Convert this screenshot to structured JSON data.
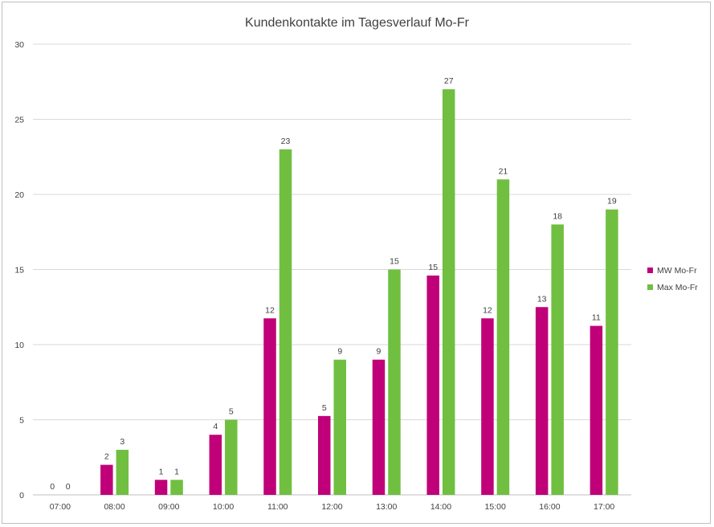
{
  "chart_data": {
    "type": "bar",
    "title": "Kundenkontakte im Tagesverlauf Mo-Fr",
    "categories": [
      "07:00",
      "08:00",
      "09:00",
      "10:00",
      "11:00",
      "12:00",
      "13:00",
      "14:00",
      "15:00",
      "16:00",
      "17:00"
    ],
    "series": [
      {
        "name": "MW Mo-Fr",
        "color": "#c00078",
        "values": [
          0,
          2,
          1,
          4,
          11.75,
          5.25,
          9,
          14.6,
          11.75,
          12.5,
          11.25
        ],
        "labels": [
          "0",
          "2",
          "1",
          "4",
          "12",
          "5",
          "9",
          "15",
          "12",
          "13",
          "11"
        ]
      },
      {
        "name": "Max Mo-Fr",
        "color": "#70bf41",
        "values": [
          0,
          3,
          1,
          5,
          23,
          9,
          15,
          27,
          21,
          18,
          19
        ],
        "labels": [
          "0",
          "3",
          "1",
          "5",
          "23",
          "9",
          "15",
          "27",
          "21",
          "18",
          "19"
        ]
      }
    ],
    "y_ticks": [
      "0",
      "5",
      "10",
      "15",
      "20",
      "25",
      "30"
    ],
    "ylim": [
      0,
      30
    ],
    "grid": true,
    "legend_position": "right"
  }
}
